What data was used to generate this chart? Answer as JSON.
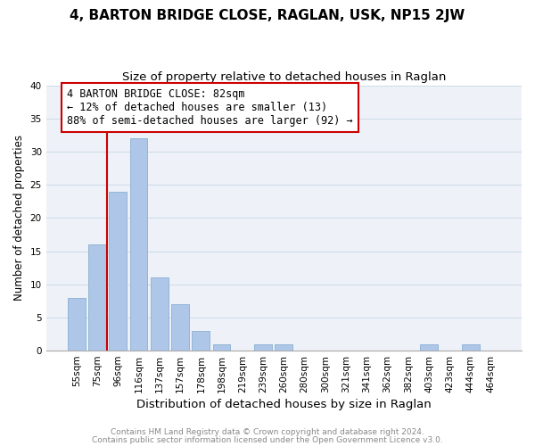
{
  "title1": "4, BARTON BRIDGE CLOSE, RAGLAN, USK, NP15 2JW",
  "title2": "Size of property relative to detached houses in Raglan",
  "xlabel": "Distribution of detached houses by size in Raglan",
  "ylabel": "Number of detached properties",
  "categories": [
    "55sqm",
    "75sqm",
    "96sqm",
    "116sqm",
    "137sqm",
    "157sqm",
    "178sqm",
    "198sqm",
    "219sqm",
    "239sqm",
    "260sqm",
    "280sqm",
    "300sqm",
    "321sqm",
    "341sqm",
    "362sqm",
    "382sqm",
    "403sqm",
    "423sqm",
    "444sqm",
    "464sqm"
  ],
  "values": [
    8,
    16,
    24,
    32,
    11,
    7,
    3,
    1,
    0,
    1,
    1,
    0,
    0,
    0,
    0,
    0,
    0,
    1,
    0,
    1,
    0
  ],
  "bar_color": "#aec6e8",
  "bar_edge_color": "#8ab0d0",
  "grid_color": "#d0dce8",
  "bg_color": "#eef2f8",
  "vline_color": "#cc0000",
  "annotation_text": "4 BARTON BRIDGE CLOSE: 82sqm\n← 12% of detached houses are smaller (13)\n88% of semi-detached houses are larger (92) →",
  "annotation_box_edge": "#cc0000",
  "ylim": [
    0,
    40
  ],
  "yticks": [
    0,
    5,
    10,
    15,
    20,
    25,
    30,
    35,
    40
  ],
  "footer1": "Contains HM Land Registry data © Crown copyright and database right 2024.",
  "footer2": "Contains public sector information licensed under the Open Government Licence v3.0.",
  "title1_fontsize": 11,
  "title2_fontsize": 9.5,
  "xlabel_fontsize": 9.5,
  "ylabel_fontsize": 8.5,
  "tick_fontsize": 7.5,
  "footer_fontsize": 6.5,
  "annotation_fontsize": 8.5
}
